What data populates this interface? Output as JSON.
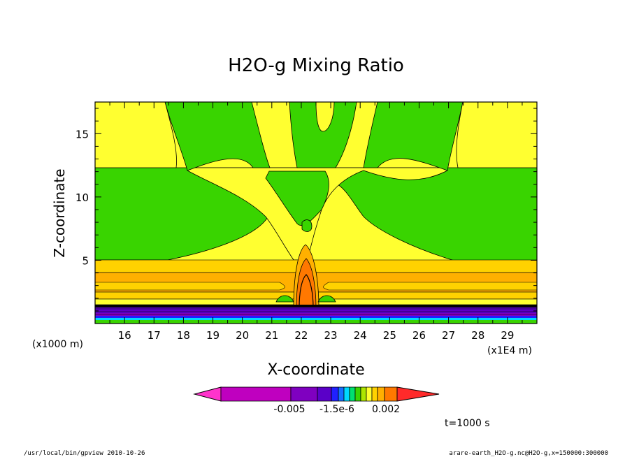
{
  "chart_data": {
    "type": "heatmap",
    "title": "H2O-g Mixing Ratio",
    "xlabel": "X-coordinate",
    "ylabel": "Z-coordinate",
    "x_unit": "(x1E4 m)",
    "y_unit": "(x1000 m)",
    "xlim": [
      15.0,
      30.0
    ],
    "ylim": [
      0.0,
      17.5
    ],
    "xticks": [
      16,
      17,
      18,
      19,
      20,
      21,
      22,
      23,
      24,
      25,
      26,
      27,
      28,
      29
    ],
    "yticks": [
      5,
      10,
      15
    ],
    "colorbar": {
      "labels": [
        "-0.005",
        "-1.5e-6",
        "0.002"
      ],
      "colors": [
        "#ff33cc",
        "#bf00bf",
        "#7f00c0",
        "#5a00c8",
        "#2020ff",
        "#1470ff",
        "#00d8ff",
        "#00e070",
        "#39d400",
        "#aee600",
        "#ffff30",
        "#ffd200",
        "#ffb000",
        "#ff7800",
        "#ff2a2a"
      ]
    },
    "time_label": "t=1000 s"
  },
  "footer": {
    "left": "/usr/local/bin/gpview  2010-10-26",
    "right": "arare-earth_H2O-g.nc@H2O-g,x=150000:300000"
  }
}
